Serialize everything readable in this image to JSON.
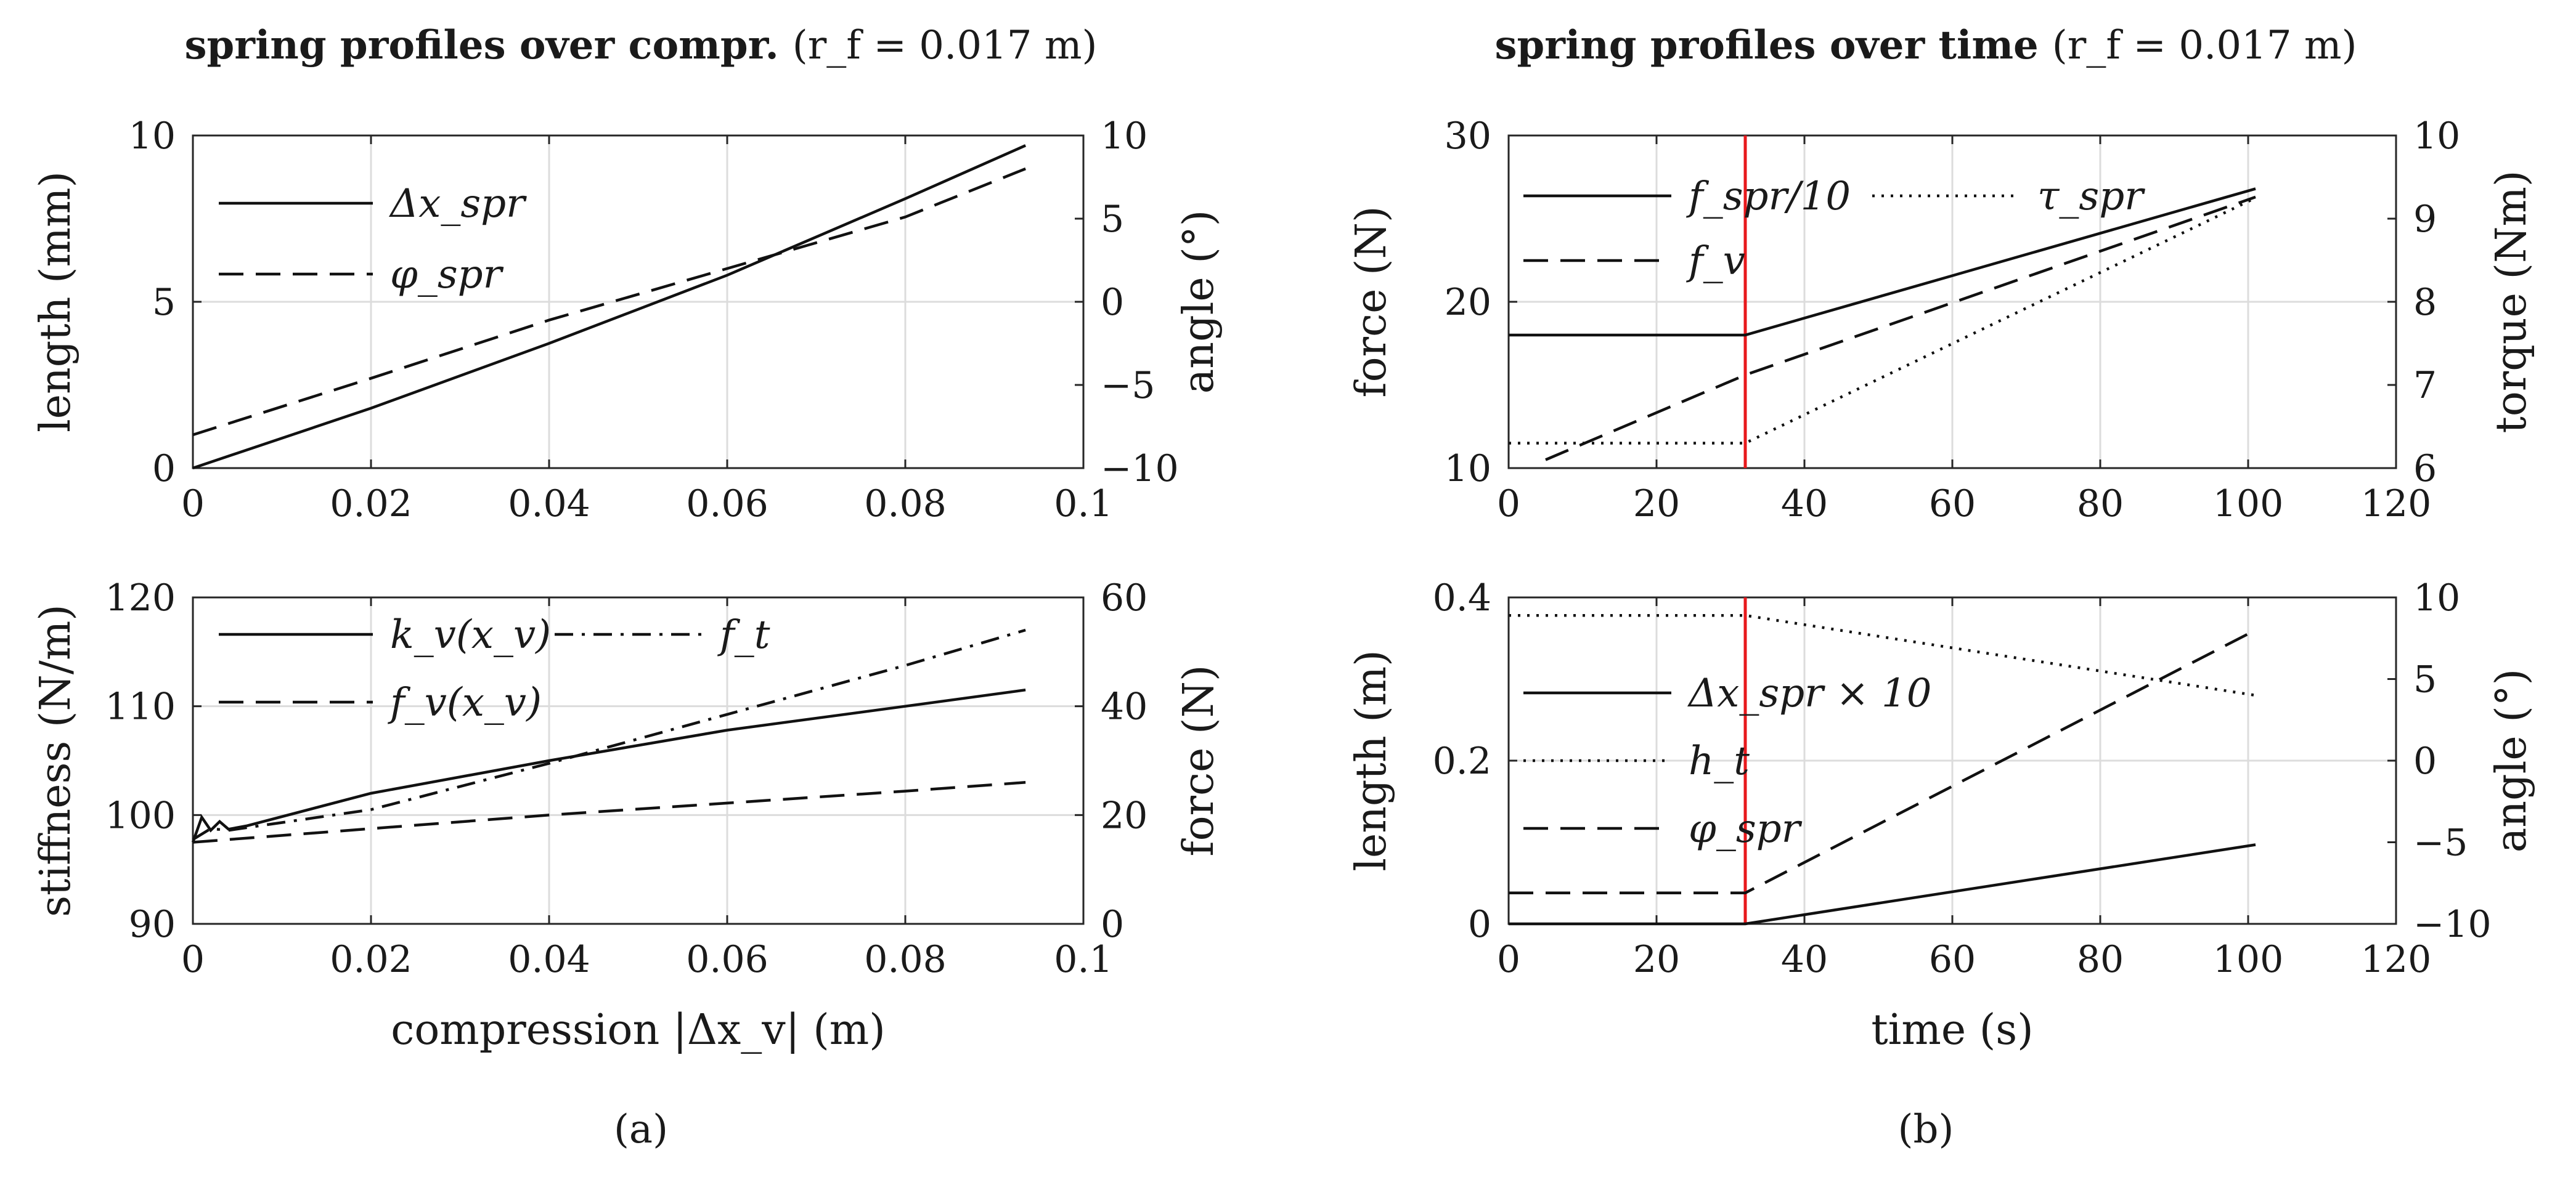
{
  "figure": {
    "panel_labels": [
      "(a)",
      "(b)"
    ],
    "titles": {
      "left": {
        "bold": "spring profiles over compr.",
        "param": "(r_f = 0.017 m)"
      },
      "right": {
        "bold": "spring profiles over time",
        "param": "(r_f = 0.017 m)"
      }
    }
  },
  "chart_data": [
    {
      "id": "a_top",
      "type": "line",
      "xlabel": "",
      "ylabel": "length (mm)",
      "y2label": "angle (°)",
      "xlim": [
        0,
        0.1
      ],
      "ylim": [
        0,
        10
      ],
      "y2lim": [
        -10,
        10
      ],
      "xticks": [
        0,
        0.02,
        0.04,
        0.06,
        0.08,
        0.1
      ],
      "xticklabels": [
        "0",
        "0.02",
        "0.04",
        "0.06",
        "0.08",
        "0.1"
      ],
      "yticks": [
        0,
        5,
        10
      ],
      "yticklabels": [
        "0",
        "5",
        "10"
      ],
      "y2ticks": [
        -10,
        -5,
        0,
        5,
        10
      ],
      "y2ticklabels": [
        "−10",
        "−5",
        "0",
        "5",
        "10"
      ],
      "grid": true,
      "legend": {
        "placement": "top-left",
        "entries": [
          "Δx_spr",
          "φ_spr"
        ]
      },
      "series": [
        {
          "name": "Δx_spr",
          "style": "solid",
          "axis": "left",
          "x": [
            0,
            0.02,
            0.04,
            0.06,
            0.08,
            0.0935
          ],
          "y": [
            0,
            1.8,
            3.75,
            5.8,
            8.1,
            9.7
          ]
        },
        {
          "name": "φ_spr",
          "style": "dashed",
          "axis": "right",
          "x": [
            0,
            0.02,
            0.04,
            0.06,
            0.08,
            0.0935
          ],
          "y": [
            -8,
            -4.6,
            -1.1,
            2.0,
            5.1,
            8.0
          ]
        }
      ]
    },
    {
      "id": "a_bottom",
      "type": "line",
      "xlabel": "compression |Δx_v| (m)",
      "ylabel": "stiffness (N/m)",
      "y2label": "force (N)",
      "xlim": [
        0,
        0.1
      ],
      "ylim": [
        90,
        120
      ],
      "y2lim": [
        0,
        60
      ],
      "xticks": [
        0,
        0.02,
        0.04,
        0.06,
        0.08,
        0.1
      ],
      "xticklabels": [
        "0",
        "0.02",
        "0.04",
        "0.06",
        "0.08",
        "0.1"
      ],
      "yticks": [
        90,
        100,
        110,
        120
      ],
      "yticklabels": [
        "90",
        "100",
        "110",
        "120"
      ],
      "y2ticks": [
        0,
        20,
        40,
        60
      ],
      "y2ticklabels": [
        "0",
        "20",
        "40",
        "60"
      ],
      "grid": true,
      "legend": {
        "placement": "top-left",
        "entries": [
          "k_v(x_v)",
          "f_v(x_v)",
          "f_t"
        ]
      },
      "series": [
        {
          "name": "k_v(x_v)",
          "style": "solid",
          "axis": "left",
          "x": [
            0,
            0.001,
            0.002,
            0.003,
            0.004,
            0.006,
            0.02,
            0.04,
            0.06,
            0.08,
            0.0935
          ],
          "y": [
            97.5,
            99.8,
            98.6,
            99.4,
            98.7,
            99.0,
            102.0,
            105.0,
            107.8,
            110.0,
            111.5
          ]
        },
        {
          "name": "f_v(x_v)",
          "style": "dashed",
          "axis": "right",
          "x": [
            0,
            0.02,
            0.04,
            0.06,
            0.08,
            0.0935
          ],
          "y": [
            15,
            17.5,
            20.0,
            22.2,
            24.4,
            26.0
          ]
        },
        {
          "name": "f_t",
          "style": "dashdot",
          "axis": "right",
          "x": [
            0,
            0.002,
            0.004,
            0.02,
            0.04,
            0.06,
            0.08,
            0.0935
          ],
          "y": [
            15.5,
            17.5,
            17.2,
            21.0,
            29.5,
            38.5,
            47.5,
            54.0
          ]
        }
      ]
    },
    {
      "id": "b_top",
      "type": "line",
      "xlabel": "",
      "ylabel": "force (N)",
      "y2label": "torque (Nm)",
      "xlim": [
        0,
        120
      ],
      "ylim": [
        10,
        30
      ],
      "y2lim": [
        6,
        10
      ],
      "xticks": [
        0,
        20,
        40,
        60,
        80,
        100,
        120
      ],
      "xticklabels": [
        "0",
        "20",
        "40",
        "60",
        "80",
        "100",
        "120"
      ],
      "yticks": [
        10,
        20,
        30
      ],
      "yticklabels": [
        "10",
        "20",
        "30"
      ],
      "y2ticks": [
        6,
        7,
        8,
        9,
        10
      ],
      "y2ticklabels": [
        "6",
        "7",
        "8",
        "9",
        "10"
      ],
      "grid": true,
      "vline": {
        "x": 32,
        "color": "#e8191c"
      },
      "legend": {
        "placement": "top",
        "entries": [
          "f_spr/10",
          "f_v",
          "τ_spr"
        ]
      },
      "series": [
        {
          "name": "f_spr/10",
          "style": "solid",
          "axis": "left",
          "x": [
            0,
            32,
            101
          ],
          "y": [
            18,
            18,
            26.8
          ]
        },
        {
          "name": "f_v",
          "style": "dashed",
          "axis": "left",
          "x": [
            5,
            32,
            101
          ],
          "y": [
            10.5,
            15.6,
            26.3
          ]
        },
        {
          "name": "τ_spr",
          "style": "dotted",
          "axis": "right",
          "x": [
            0,
            32,
            101
          ],
          "y": [
            6.3,
            6.3,
            9.25
          ]
        }
      ]
    },
    {
      "id": "b_bottom",
      "type": "line",
      "xlabel": "time (s)",
      "ylabel": "length (m)",
      "y2label": "angle (°)",
      "xlim": [
        0,
        120
      ],
      "ylim": [
        0,
        0.4
      ],
      "y2lim": [
        -10,
        10
      ],
      "xticks": [
        0,
        20,
        40,
        60,
        80,
        100,
        120
      ],
      "xticklabels": [
        "0",
        "20",
        "40",
        "60",
        "80",
        "100",
        "120"
      ],
      "yticks": [
        0,
        0.2,
        0.4
      ],
      "yticklabels": [
        "0",
        "0.2",
        "0.4"
      ],
      "y2ticks": [
        -10,
        -5,
        0,
        5,
        10
      ],
      "y2ticklabels": [
        "−10",
        "−5",
        "0",
        "5",
        "10"
      ],
      "grid": true,
      "vline": {
        "x": 32,
        "color": "#e8191c"
      },
      "legend": {
        "placement": "left",
        "entries": [
          "Δx_spr × 10",
          "h_t",
          "φ_spr"
        ]
      },
      "series": [
        {
          "name": "Δx_spr × 10",
          "style": "solid",
          "axis": "left",
          "x": [
            0,
            32,
            101
          ],
          "y": [
            0,
            0,
            0.097
          ]
        },
        {
          "name": "h_t",
          "style": "dotted",
          "axis": "left",
          "x": [
            0,
            32,
            101
          ],
          "y": [
            0.378,
            0.378,
            0.28
          ]
        },
        {
          "name": "φ_spr",
          "style": "dashed",
          "axis": "right",
          "x": [
            0,
            32,
            101
          ],
          "y": [
            -8.1,
            -8.1,
            8.0
          ]
        }
      ]
    }
  ]
}
